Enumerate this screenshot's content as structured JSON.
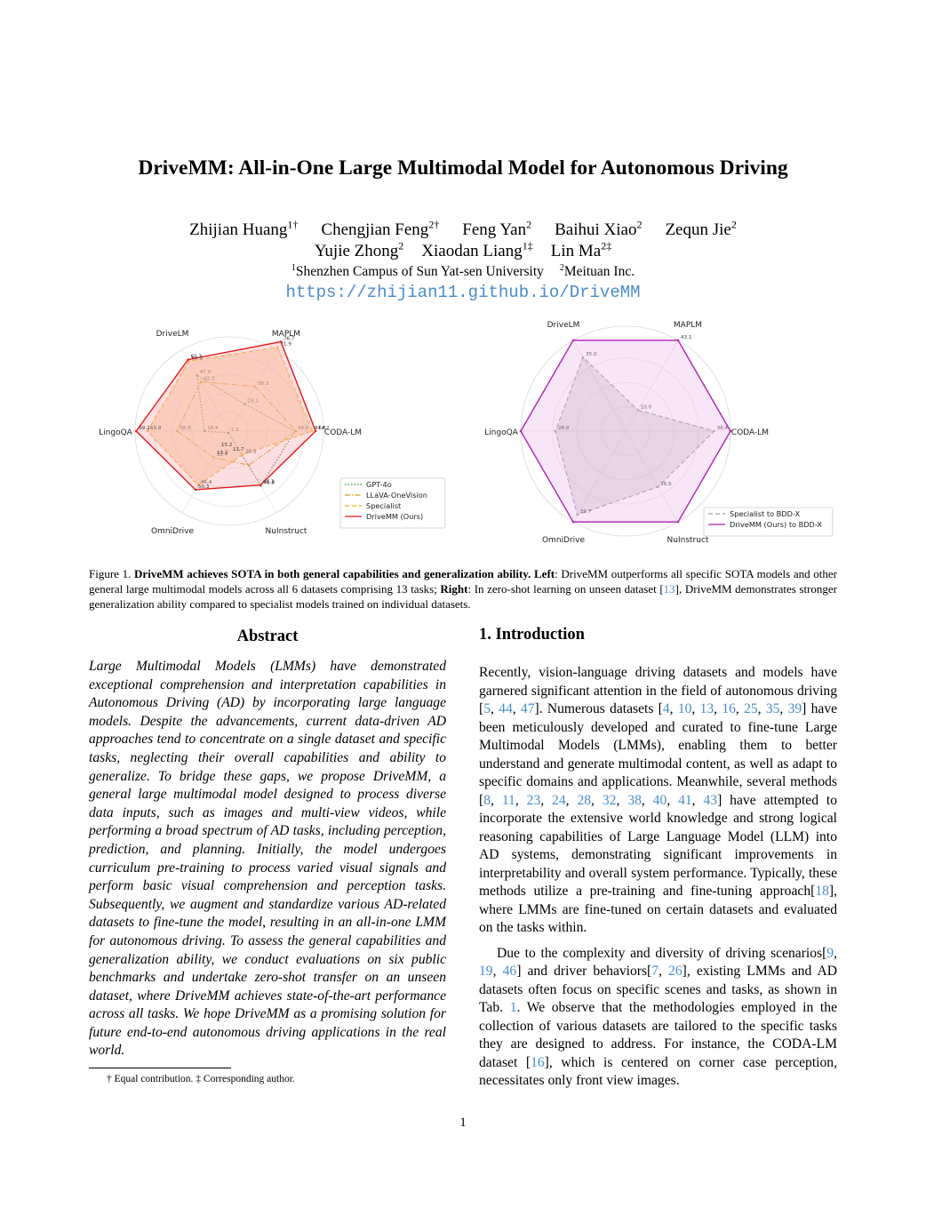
{
  "paper": {
    "title": "DriveMM: All-in-One Large Multimodal Model for Autonomous Driving",
    "authors_line1": [
      {
        "name": "Zhijian Huang",
        "sup": "1†"
      },
      {
        "name": "Chengjian Feng",
        "sup": "2†"
      },
      {
        "name": "Feng Yan",
        "sup": "2"
      },
      {
        "name": "Baihui Xiao",
        "sup": "2"
      },
      {
        "name": "Zequn Jie",
        "sup": "2"
      }
    ],
    "authors_line2": [
      {
        "name": "Yujie Zhong",
        "sup": "2"
      },
      {
        "name": "Xiaodan Liang",
        "sup": "1‡"
      },
      {
        "name": "Lin Ma",
        "sup": "2‡"
      }
    ],
    "affiliations": [
      {
        "sup": "1",
        "name": "Shenzhen Campus of Sun Yat-sen University"
      },
      {
        "sup": "2",
        "name": "Meituan Inc."
      }
    ],
    "url": "https://zhijian11.github.io/DriveMM",
    "page_number": "1"
  },
  "figure": {
    "caption": {
      "label": "Figure 1.",
      "bold": "DriveMM achieves SOTA in both general capabilities and generalization ability.",
      "left_bold": "Left",
      "left_text": ": DriveMM outperforms all specific SOTA models and other general large multimodal models across all 6 datasets comprising 13 tasks;",
      "right_bold": "Right",
      "right_text_before": ": In zero-shot learning on unseen dataset [",
      "right_cite": "13",
      "right_text_after": "], DriveMM demonstrates stronger generalization ability compared to specialist models trained on individual datasets."
    }
  },
  "chart_data": [
    {
      "type": "radar",
      "axes": [
        "MAPLM",
        "CODA-LM",
        "NuInstruct",
        "OmniDrive",
        "LingoQA",
        "DriveLM"
      ],
      "series": [
        {
          "name": "GPT-4o",
          "color": "#2e8b2e",
          "style": "dotted",
          "values": [
            23.1,
            48.8,
            46.8,
            1.5,
            18.4,
            47.9
          ],
          "labels": [
            "23.1",
            "48.8",
            "46.8",
            "1.5",
            "18.4",
            "47.9"
          ]
        },
        {
          "name": "LLaVA-OneVision",
          "color": "#d4a017",
          "style": "dashdot",
          "values": [
            38.3,
            49.7,
            29.2,
            22.7,
            38.8,
            42.3
          ],
          "labels": [
            "38.3",
            "",
            "",
            "22.7",
            "38.8",
            "42.3"
          ]
        },
        {
          "name": "Specialist",
          "color": "#f0b428",
          "style": "dashed",
          "values": [
            71.9,
            61.6,
            20.1,
            46.4,
            60.8,
            60.0
          ],
          "labels": [
            "71.9",
            "61.6",
            "20.1",
            "46.4",
            "60.8",
            "60.0"
          ]
        },
        {
          "name": "DriveMM (Ours)",
          "color": "#e0191b",
          "style": "solid",
          "values": [
            76.7,
            64.2,
            46.3,
            50.3,
            69.2,
            61.3
          ],
          "labels": [
            "76.7",
            "64.2",
            "46.3",
            "50.3",
            "69.2",
            "61.3"
          ]
        }
      ],
      "extra_labels": [
        "15.2",
        "11.7",
        "13.2"
      ],
      "legend_position": "bottom-right"
    },
    {
      "type": "radar",
      "axes": [
        "MAPLM",
        "CODA-LM",
        "NuInstruct",
        "OmniDrive",
        "LingoQA",
        "DriveLM"
      ],
      "series": [
        {
          "name": "Specialist to BDD-X",
          "color": "#999999",
          "style": "dashed",
          "values": [
            10.0,
            36.4,
            26.5,
            39.7,
            28.9,
            35.0
          ],
          "labels": [
            "10.0",
            "36.4",
            "26.5",
            "39.7",
            "28.9",
            "35.0"
          ]
        },
        {
          "name": "DriveMM (Ours) to BDD-X",
          "color": "#b01fb0",
          "style": "solid",
          "values": [
            43.1,
            43.1,
            43.1,
            43.1,
            43.1,
            43.1
          ],
          "labels": [
            "43.1"
          ]
        }
      ],
      "legend_position": "bottom-right"
    }
  ],
  "abstract": {
    "heading": "Abstract",
    "text": "Large Multimodal Models (LMMs) have demonstrated exceptional comprehension and interpretation capabilities in Autonomous Driving (AD) by incorporating large language models. Despite the advancements, current data-driven AD approaches tend to concentrate on a single dataset and specific tasks, neglecting their overall capabilities and ability to generalize. To bridge these gaps, we propose DriveMM, a general large multimodal model designed to process diverse data inputs, such as images and multi-view videos, while performing a broad spectrum of AD tasks, including perception, prediction, and planning. Initially, the model undergoes curriculum pre-training to process varied visual signals and perform basic visual comprehension and perception tasks. Subsequently, we augment and standardize various AD-related datasets to fine-tune the model, resulting in an all-in-one LMM for autonomous driving. To assess the general capabilities and generalization ability, we conduct evaluations on six public benchmarks and undertake zero-shot transfer on an unseen dataset, where DriveMM achieves state-of-the-art performance across all tasks. We hope DriveMM as a promising solution for future end-to-end autonomous driving applications in the real world."
  },
  "introduction": {
    "heading": "1. Introduction",
    "p1": [
      {
        "t": "Recently, vision-language driving datasets and models have garnered significant attention in the field of autonomous driving ["
      },
      {
        "c": "5"
      },
      {
        "t": ", "
      },
      {
        "c": "44"
      },
      {
        "t": ", "
      },
      {
        "c": "47"
      },
      {
        "t": "]. Numerous datasets ["
      },
      {
        "c": "4"
      },
      {
        "t": ", "
      },
      {
        "c": "10"
      },
      {
        "t": ", "
      },
      {
        "c": "13"
      },
      {
        "t": ", "
      },
      {
        "c": "16"
      },
      {
        "t": ", "
      },
      {
        "c": "25"
      },
      {
        "t": ", "
      },
      {
        "c": "35"
      },
      {
        "t": ", "
      },
      {
        "c": "39"
      },
      {
        "t": "] have been meticulously developed and curated to fine-tune Large Multimodal Models (LMMs), enabling them to better understand and generate multimodal content, as well as adapt to specific domains and applications. Meanwhile, several methods ["
      },
      {
        "c": "8"
      },
      {
        "t": ", "
      },
      {
        "c": "11"
      },
      {
        "t": ", "
      },
      {
        "c": "23"
      },
      {
        "t": ", "
      },
      {
        "c": "24"
      },
      {
        "t": ", "
      },
      {
        "c": "28"
      },
      {
        "t": ", "
      },
      {
        "c": "32"
      },
      {
        "t": ", "
      },
      {
        "c": "38"
      },
      {
        "t": ", "
      },
      {
        "c": "40"
      },
      {
        "t": ", "
      },
      {
        "c": "41"
      },
      {
        "t": ", "
      },
      {
        "c": "43"
      },
      {
        "t": "] have attempted to incorporate the extensive world knowledge and strong logical reasoning capabilities of Large Language Model (LLM) into AD systems, demonstrating significant improvements in interpretability and overall system performance. Typically, these methods utilize a pre-training and fine-tuning approach["
      },
      {
        "c": "18"
      },
      {
        "t": "], where LMMs are fine-tuned on certain datasets and evaluated on the tasks within."
      }
    ],
    "p2": [
      {
        "t": "Due to the complexity and diversity of driving scenarios["
      },
      {
        "c": "9"
      },
      {
        "t": ", "
      },
      {
        "c": "19"
      },
      {
        "t": ", "
      },
      {
        "c": "46"
      },
      {
        "t": "] and driver behaviors["
      },
      {
        "c": "7"
      },
      {
        "t": ", "
      },
      {
        "c": "26"
      },
      {
        "t": "], existing LMMs and AD datasets often focus on specific scenes and tasks, as shown in Tab. "
      },
      {
        "c": "1"
      },
      {
        "t": ". We observe that the methodologies employed in the collection of various datasets are tailored to the specific tasks they are designed to address. For instance, the CODA-LM dataset ["
      },
      {
        "c": "16"
      },
      {
        "t": "], which is centered on corner case perception, necessitates only front view images."
      }
    ]
  },
  "footnote": "† Equal contribution. ‡ Corresponding author."
}
